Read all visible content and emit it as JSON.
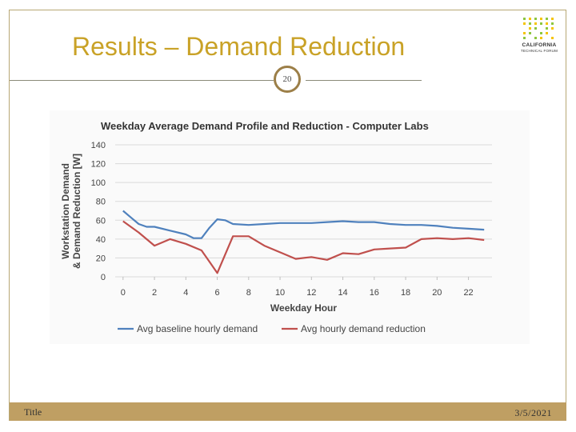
{
  "slide": {
    "title": "Results – Demand Reduction",
    "page_number": "20",
    "footer_left": "Title",
    "footer_right": "3/5/2021",
    "logo_text_1": "CALIFORNIA",
    "logo_text_2": "TECHNICAL FORUM",
    "title_color": "#c9a227",
    "footer_color": "#bf9f63"
  },
  "chart_data": {
    "type": "line",
    "title": "Weekday Average Demand Profile and Reduction - Computer Labs",
    "xlabel": "Weekday Hour",
    "ylabel_line1": "Workstation Demand",
    "ylabel_line2": "& Demand Reduction [W]",
    "xlim": [
      -0.5,
      23.5
    ],
    "ylim": [
      0,
      140
    ],
    "yticks": [
      0,
      20,
      40,
      60,
      80,
      100,
      120,
      140
    ],
    "xticks": [
      0,
      2,
      4,
      6,
      8,
      10,
      12,
      14,
      16,
      18,
      20,
      22
    ],
    "grid": true,
    "legend_position": "bottom",
    "series": [
      {
        "name": "Avg baseline hourly demand",
        "color": "#4f81bd",
        "x": [
          0,
          0.5,
          1,
          1.5,
          2,
          3,
          4,
          4.5,
          5,
          5.5,
          6,
          6.5,
          7,
          8,
          9,
          10,
          11,
          12,
          13,
          14,
          15,
          16,
          17,
          18,
          19,
          20,
          21,
          22,
          23
        ],
        "values": [
          70,
          63,
          56,
          53,
          53,
          49,
          45,
          41,
          41,
          52,
          61,
          60,
          56,
          55,
          56,
          57,
          57,
          57,
          58,
          59,
          58,
          58,
          56,
          55,
          55,
          54,
          52,
          51,
          50
        ]
      },
      {
        "name": "Avg hourly demand reduction",
        "color": "#c0504d",
        "x": [
          0,
          1,
          2,
          3,
          4,
          5,
          5.5,
          6,
          7,
          8,
          9,
          10,
          11,
          12,
          13,
          14,
          15,
          16,
          17,
          18,
          19,
          20,
          21,
          22,
          23
        ],
        "values": [
          59,
          47,
          33,
          40,
          35,
          28,
          16,
          4,
          43,
          43,
          33,
          26,
          19,
          21,
          18,
          25,
          24,
          29,
          30,
          31,
          40,
          41,
          40,
          41,
          39
        ]
      }
    ]
  }
}
